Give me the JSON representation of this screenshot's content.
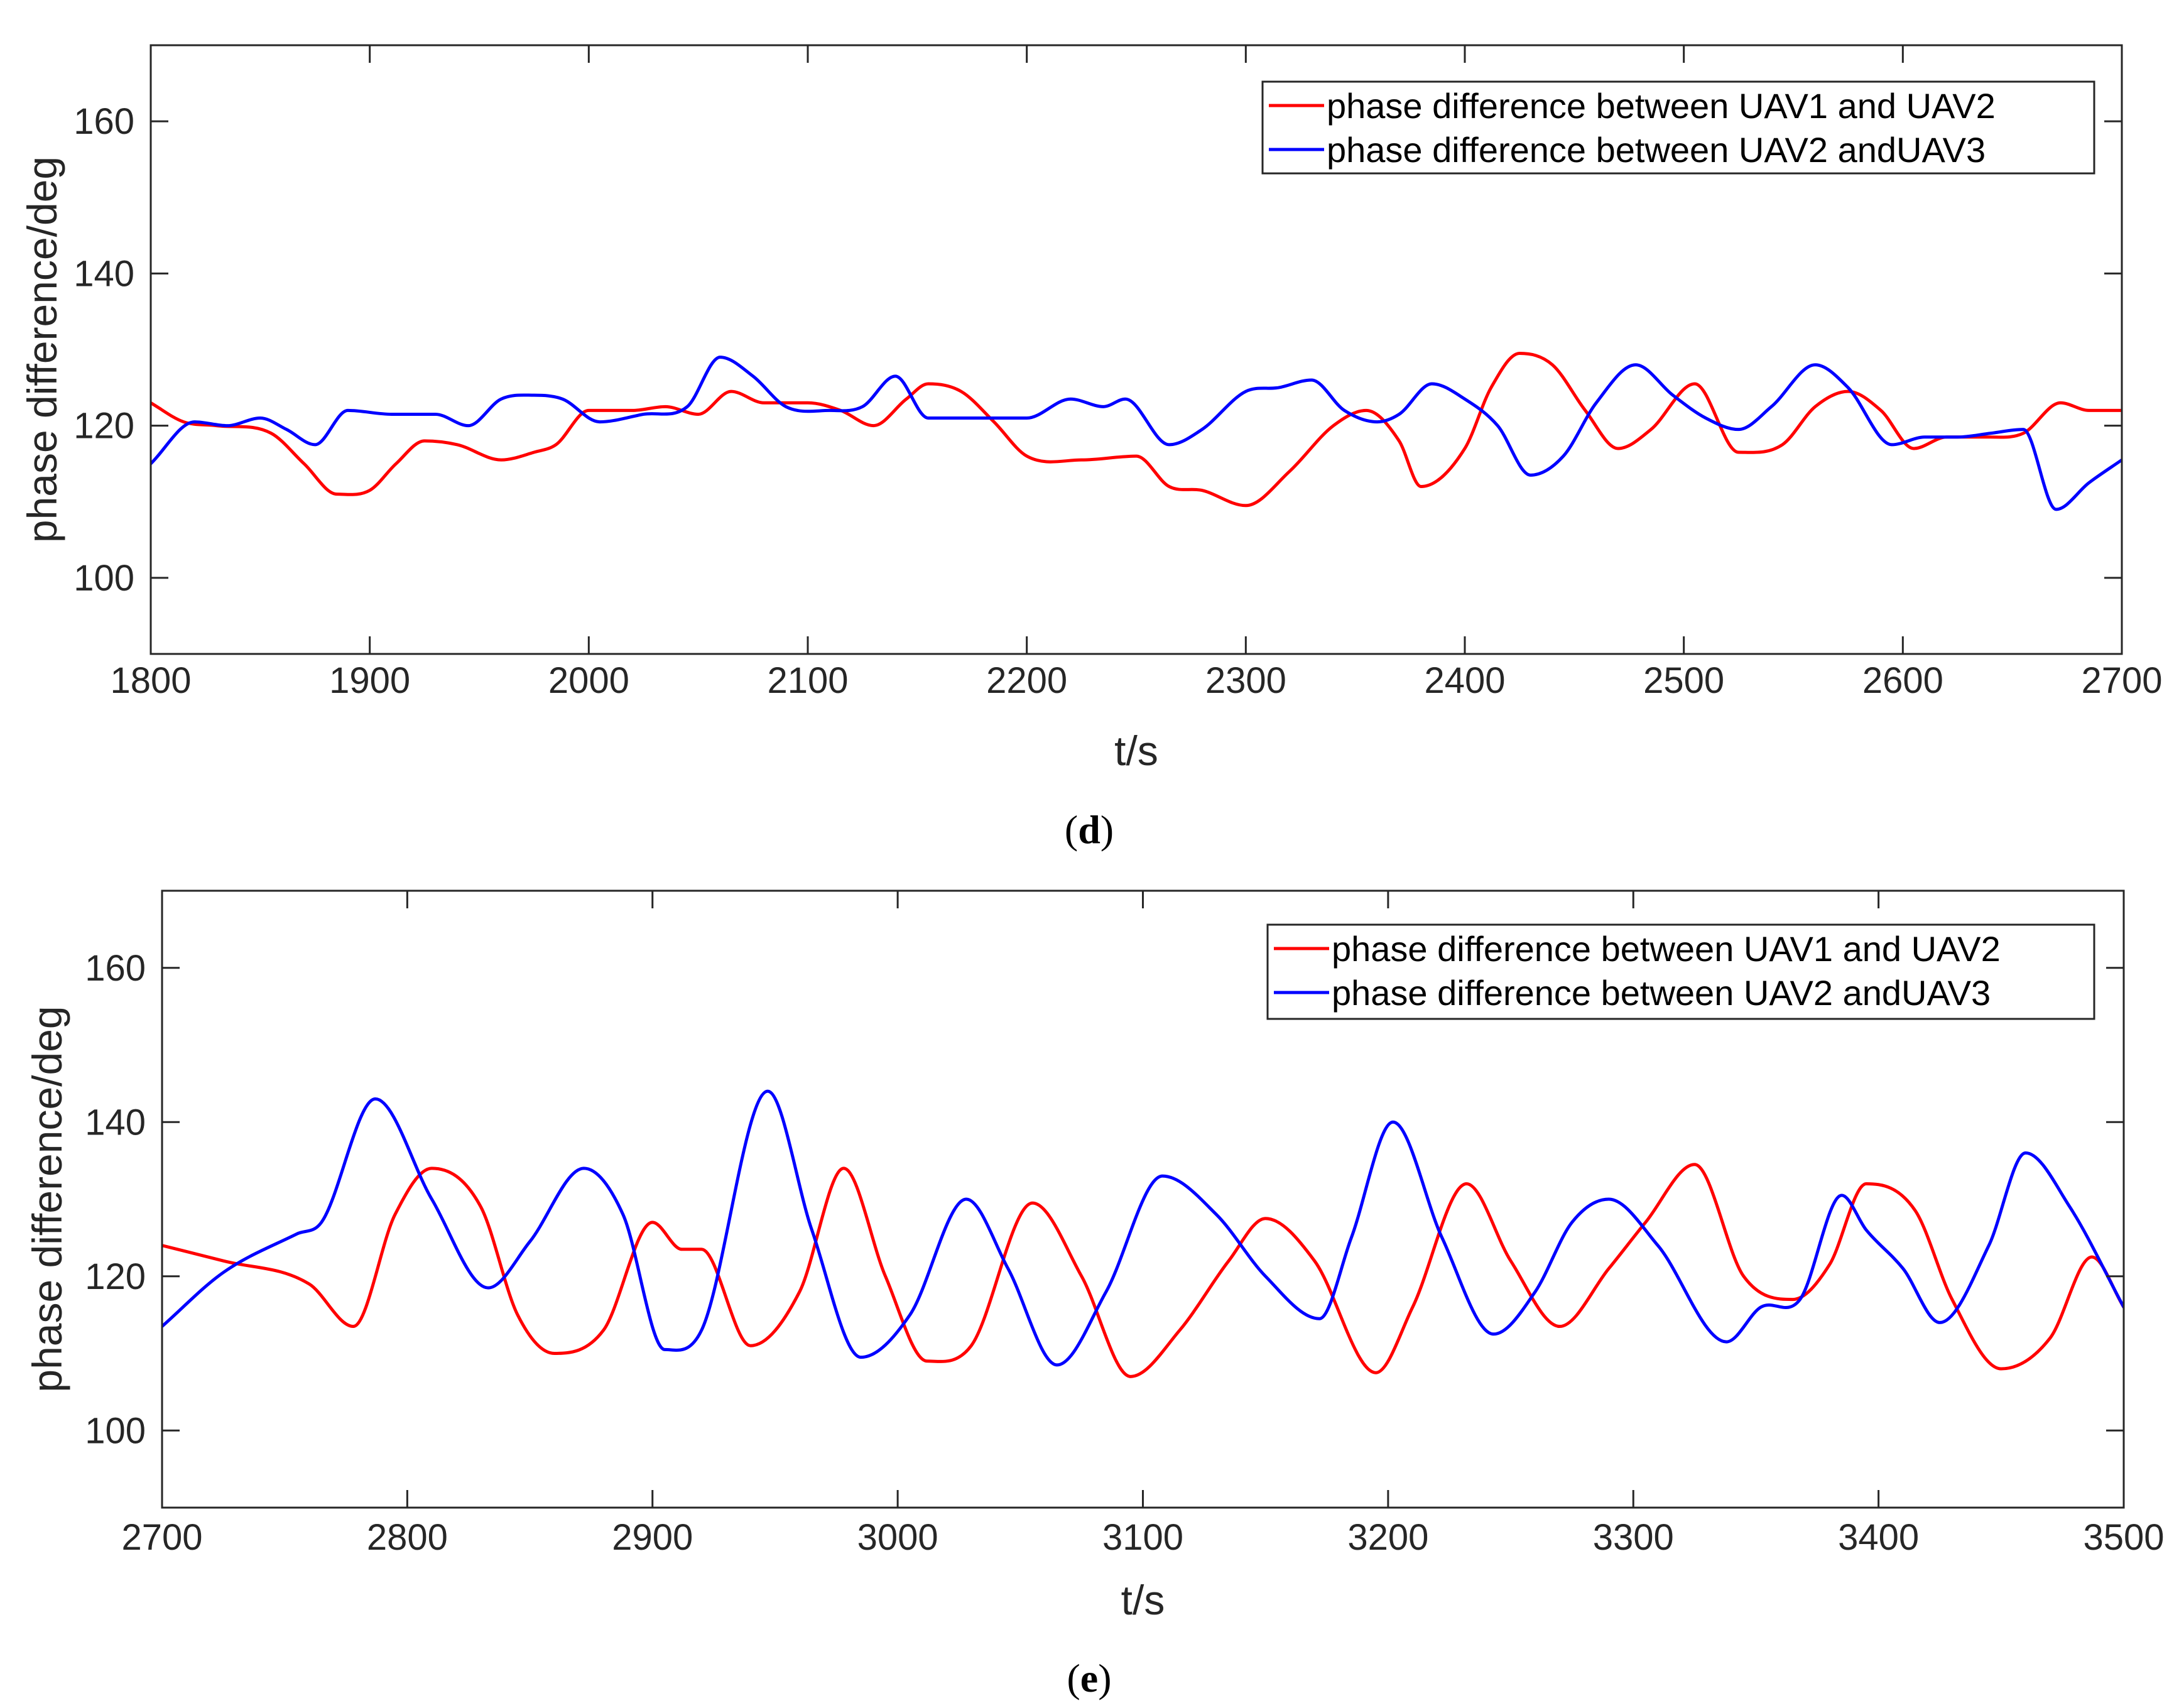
{
  "chart_data": [
    {
      "id": "d",
      "type": "line",
      "caption_letter": "d",
      "xlabel": "t/s",
      "ylabel": "phase difference/deg",
      "xlim": [
        1800,
        2700
      ],
      "ylim": [
        90,
        170
      ],
      "xticks": [
        1800,
        1900,
        2000,
        2100,
        2200,
        2300,
        2400,
        2500,
        2600,
        2700
      ],
      "yticks": [
        100,
        120,
        140,
        160
      ],
      "grid": false,
      "legend_position": "top-right",
      "series": [
        {
          "name": "phase difference between UAV1 and UAV2",
          "color": "#ff0000",
          "x": [
            1800,
            1815,
            1830,
            1855,
            1870,
            1885,
            1900,
            1912,
            1925,
            1940,
            1960,
            1975,
            1985,
            2000,
            2020,
            2035,
            2050,
            2065,
            2080,
            2100,
            2115,
            2130,
            2145,
            2155,
            2170,
            2185,
            2200,
            2225,
            2250,
            2265,
            2280,
            2300,
            2320,
            2340,
            2355,
            2370,
            2380,
            2400,
            2412,
            2425,
            2440,
            2455,
            2470,
            2485,
            2505,
            2525,
            2545,
            2560,
            2575,
            2590,
            2605,
            2620,
            2640,
            2655,
            2672,
            2685,
            2700
          ],
          "values": [
            123.0,
            120.5,
            120.0,
            119.0,
            115.0,
            111.0,
            111.5,
            115.0,
            118.0,
            117.5,
            115.5,
            116.5,
            117.5,
            122.0,
            122.0,
            122.5,
            121.5,
            124.5,
            123.0,
            123.0,
            122.0,
            120.0,
            123.5,
            125.5,
            124.5,
            120.5,
            116.0,
            115.5,
            116.0,
            112.0,
            111.5,
            109.5,
            114.0,
            120.0,
            122.0,
            118.0,
            112.0,
            117.0,
            125.0,
            129.5,
            128.0,
            122.0,
            117.0,
            119.5,
            125.5,
            116.5,
            117.5,
            122.5,
            124.5,
            122.0,
            117.0,
            118.5,
            118.5,
            119.0,
            123.0,
            122.0,
            122.0
          ]
        },
        {
          "name": "phase difference between UAV2 andUAV3",
          "color": "#0000ff",
          "x": [
            1800,
            1820,
            1835,
            1850,
            1862,
            1875,
            1890,
            1910,
            1930,
            1945,
            1960,
            1975,
            1988,
            2005,
            2025,
            2045,
            2060,
            2075,
            2090,
            2110,
            2125,
            2140,
            2155,
            2170,
            2185,
            2200,
            2220,
            2235,
            2245,
            2265,
            2280,
            2300,
            2315,
            2330,
            2345,
            2360,
            2370,
            2385,
            2400,
            2415,
            2430,
            2445,
            2460,
            2478,
            2495,
            2510,
            2525,
            2540,
            2560,
            2575,
            2595,
            2610,
            2625,
            2640,
            2655,
            2670,
            2685,
            2700
          ],
          "values": [
            115.0,
            120.5,
            120.0,
            121.0,
            119.5,
            117.5,
            122.0,
            121.5,
            121.5,
            120.0,
            123.5,
            124.0,
            123.5,
            120.5,
            121.5,
            122.5,
            129.0,
            126.5,
            122.5,
            122.0,
            122.5,
            126.5,
            121.0,
            121.0,
            121.0,
            121.0,
            123.5,
            122.5,
            123.5,
            117.5,
            119.5,
            124.5,
            125.0,
            126.0,
            122.0,
            120.5,
            121.5,
            125.5,
            123.5,
            120.0,
            113.5,
            116.0,
            123.0,
            128.0,
            124.0,
            121.0,
            119.5,
            122.5,
            128.0,
            125.0,
            117.5,
            118.5,
            118.5,
            119.0,
            119.5,
            109.0,
            112.5,
            115.5
          ]
        }
      ]
    },
    {
      "id": "e",
      "type": "line",
      "caption_letter": "e",
      "xlabel": "t/s",
      "ylabel": "phase difference/deg",
      "xlim": [
        2700,
        3500
      ],
      "ylim": [
        90,
        170
      ],
      "xticks": [
        2700,
        2800,
        2900,
        3000,
        3100,
        3200,
        3300,
        3400,
        3500
      ],
      "yticks": [
        100,
        120,
        140,
        160
      ],
      "grid": false,
      "legend_position": "top-right",
      "series": [
        {
          "name": "phase difference between UAV1 and UAV2",
          "color": "#ff0000",
          "x": [
            2700,
            2725,
            2760,
            2778,
            2795,
            2810,
            2830,
            2845,
            2860,
            2880,
            2900,
            2912,
            2920,
            2940,
            2960,
            2978,
            2995,
            3012,
            3030,
            3055,
            3075,
            3095,
            3115,
            3135,
            3150,
            3170,
            3195,
            3210,
            3232,
            3250,
            3270,
            3290,
            3305,
            3325,
            3345,
            3365,
            3380,
            3395,
            3415,
            3430,
            3450,
            3470,
            3487,
            3500
          ],
          "values": [
            124.0,
            122.0,
            119.0,
            113.5,
            128.0,
            134.0,
            129.0,
            115.0,
            110.0,
            113.0,
            127.0,
            123.5,
            123.5,
            111.0,
            118.0,
            134.0,
            120.0,
            109.0,
            111.0,
            129.5,
            120.0,
            107.0,
            113.0,
            122.0,
            127.5,
            122.0,
            107.5,
            116.0,
            132.0,
            122.0,
            113.5,
            121.0,
            127.0,
            134.5,
            120.0,
            117.0,
            121.5,
            132.0,
            128.5,
            117.0,
            108.0,
            112.0,
            122.5,
            116.0
          ]
        },
        {
          "name": "phase difference between UAV2 andUAV3",
          "color": "#0000ff",
          "x": [
            2700,
            2725,
            2755,
            2765,
            2787,
            2810,
            2833,
            2850,
            2872,
            2888,
            2905,
            2920,
            2947,
            2965,
            2985,
            3005,
            3028,
            3045,
            3065,
            3085,
            3108,
            3130,
            3150,
            3172,
            3185,
            3202,
            3222,
            3243,
            3260,
            3275,
            3290,
            3310,
            3338,
            3352,
            3368,
            3385,
            3395,
            3410,
            3425,
            3445,
            3460,
            3478,
            3500
          ],
          "values": [
            113.5,
            120.5,
            125.5,
            127.0,
            143.0,
            130.0,
            118.5,
            124.5,
            134.0,
            128.0,
            110.5,
            113.0,
            144.0,
            126.0,
            109.5,
            115.0,
            130.0,
            121.0,
            108.5,
            118.0,
            133.0,
            128.0,
            120.0,
            114.5,
            125.0,
            140.0,
            125.0,
            112.5,
            118.0,
            127.0,
            130.0,
            124.0,
            111.5,
            116.0,
            117.0,
            130.5,
            126.0,
            121.0,
            114.0,
            124.0,
            136.0,
            129.0,
            116.0
          ]
        }
      ]
    }
  ]
}
